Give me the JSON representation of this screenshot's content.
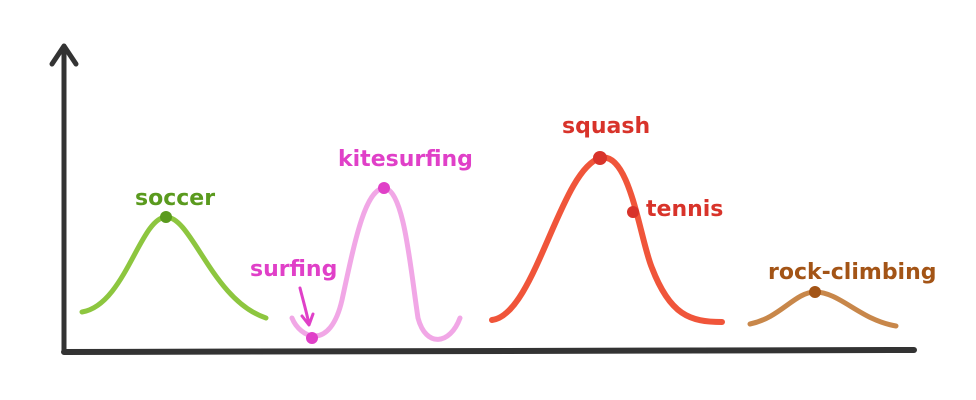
{
  "colors": {
    "axis": "#333333",
    "soccer": "#8dc63f",
    "soccer_dot": "#5a9a1e",
    "kitesurfing": "#f1a7e6",
    "kite_dot": "#e040c8",
    "squash": "#f0553a",
    "squash_dot": "#d8332a",
    "rock": "#c8874a",
    "rock_dot": "#a35416"
  },
  "labels": {
    "soccer": "soccer",
    "surfing": "surfing",
    "kitesurfing": "kitesurfing",
    "squash": "squash",
    "tennis": "tennis",
    "rock_climbing": "rock-climbing"
  }
}
